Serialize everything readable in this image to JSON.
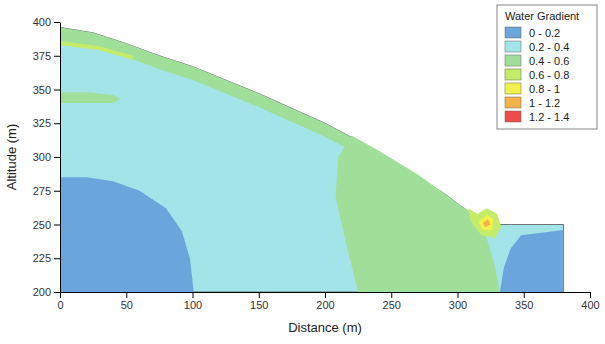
{
  "chart_data": {
    "type": "contour",
    "x_label": "Distance (m)",
    "y_label": "Altitude (m)",
    "xlim": [
      0,
      400
    ],
    "xticks": [
      0,
      50,
      100,
      150,
      200,
      250,
      300,
      350,
      400
    ],
    "ylim": [
      200,
      400
    ],
    "yticks": [
      200,
      225,
      250,
      275,
      300,
      325,
      350,
      375,
      400
    ],
    "legend_title": "Water Gradient",
    "legend": "upper right",
    "classes": [
      {
        "label": "0 - 0.2",
        "color": "#6aa5dc"
      },
      {
        "label": "0.2 - 0.4",
        "color": "#a3e4e8"
      },
      {
        "label": "0.4 - 0.6",
        "color": "#9fdf9a"
      },
      {
        "label": "0.6 - 0.8",
        "color": "#c4ec6a"
      },
      {
        "label": "0.8 - 1",
        "color": "#f2f24a"
      },
      {
        "label": "1 - 1.2",
        "color": "#f5b24a"
      },
      {
        "label": "1.2 - 1.4",
        "color": "#ee4b4b"
      }
    ],
    "regions": [
      {
        "class": 1,
        "x": [
          0,
          25,
          50,
          75,
          100,
          125,
          150,
          175,
          200,
          225,
          250,
          275,
          290,
          305,
          315,
          320,
          340,
          380,
          380,
          0
        ],
        "y": [
          396,
          392,
          384,
          375,
          367,
          357,
          347,
          336,
          325,
          312,
          298,
          282,
          273,
          262,
          255,
          250,
          250,
          250,
          200,
          200
        ]
      },
      {
        "class": 0,
        "x": [
          0,
          0,
          20,
          40,
          60,
          80,
          92,
          98,
          101
        ],
        "y": [
          200,
          285,
          285,
          282,
          275,
          262,
          245,
          225,
          200
        ]
      },
      {
        "class": 0,
        "x": [
          332,
          335,
          340,
          348,
          380,
          380
        ],
        "y": [
          200,
          218,
          232,
          242,
          246,
          200
        ]
      },
      {
        "class": 2,
        "x": [
          225,
          215,
          208,
          210,
          220,
          240,
          270,
          300,
          315,
          322,
          328,
          332
        ],
        "y": [
          200,
          240,
          270,
          300,
          316,
          305,
          287,
          266,
          256,
          240,
          220,
          200
        ]
      },
      {
        "class": 2,
        "x": [
          0,
          20,
          40,
          46,
          40,
          20,
          0
        ],
        "y": [
          348,
          348,
          346,
          343,
          340,
          340,
          340
        ]
      },
      {
        "class": 2,
        "x": [
          0,
          25,
          50,
          75,
          100,
          125,
          150,
          175,
          200,
          225,
          250,
          275,
          290,
          290,
          275,
          250,
          225,
          200,
          175,
          150,
          125,
          100,
          75,
          50,
          25,
          0
        ],
        "y": [
          396,
          392,
          384,
          375,
          367,
          357,
          347,
          336,
          325,
          312,
          298,
          282,
          273,
          263,
          272,
          288,
          302,
          315,
          326,
          337,
          347,
          357,
          365,
          374,
          382,
          386
        ]
      },
      {
        "class": 3,
        "x": [
          0,
          30,
          55,
          55,
          30,
          0
        ],
        "y": [
          386,
          382,
          375,
          372,
          379,
          383
        ]
      },
      {
        "class": 3,
        "x": [
          308,
          315,
          322,
          330,
          333,
          328,
          318,
          310
        ],
        "y": [
          262,
          258,
          262,
          258,
          248,
          240,
          242,
          252
        ]
      },
      {
        "class": 4,
        "x": [
          316,
          322,
          327,
          326,
          319
        ],
        "y": [
          252,
          257,
          254,
          246,
          246
        ]
      },
      {
        "class": 5,
        "x": [
          319,
          323,
          325,
          321
        ],
        "y": [
          251,
          254,
          250,
          248
        ]
      }
    ]
  }
}
